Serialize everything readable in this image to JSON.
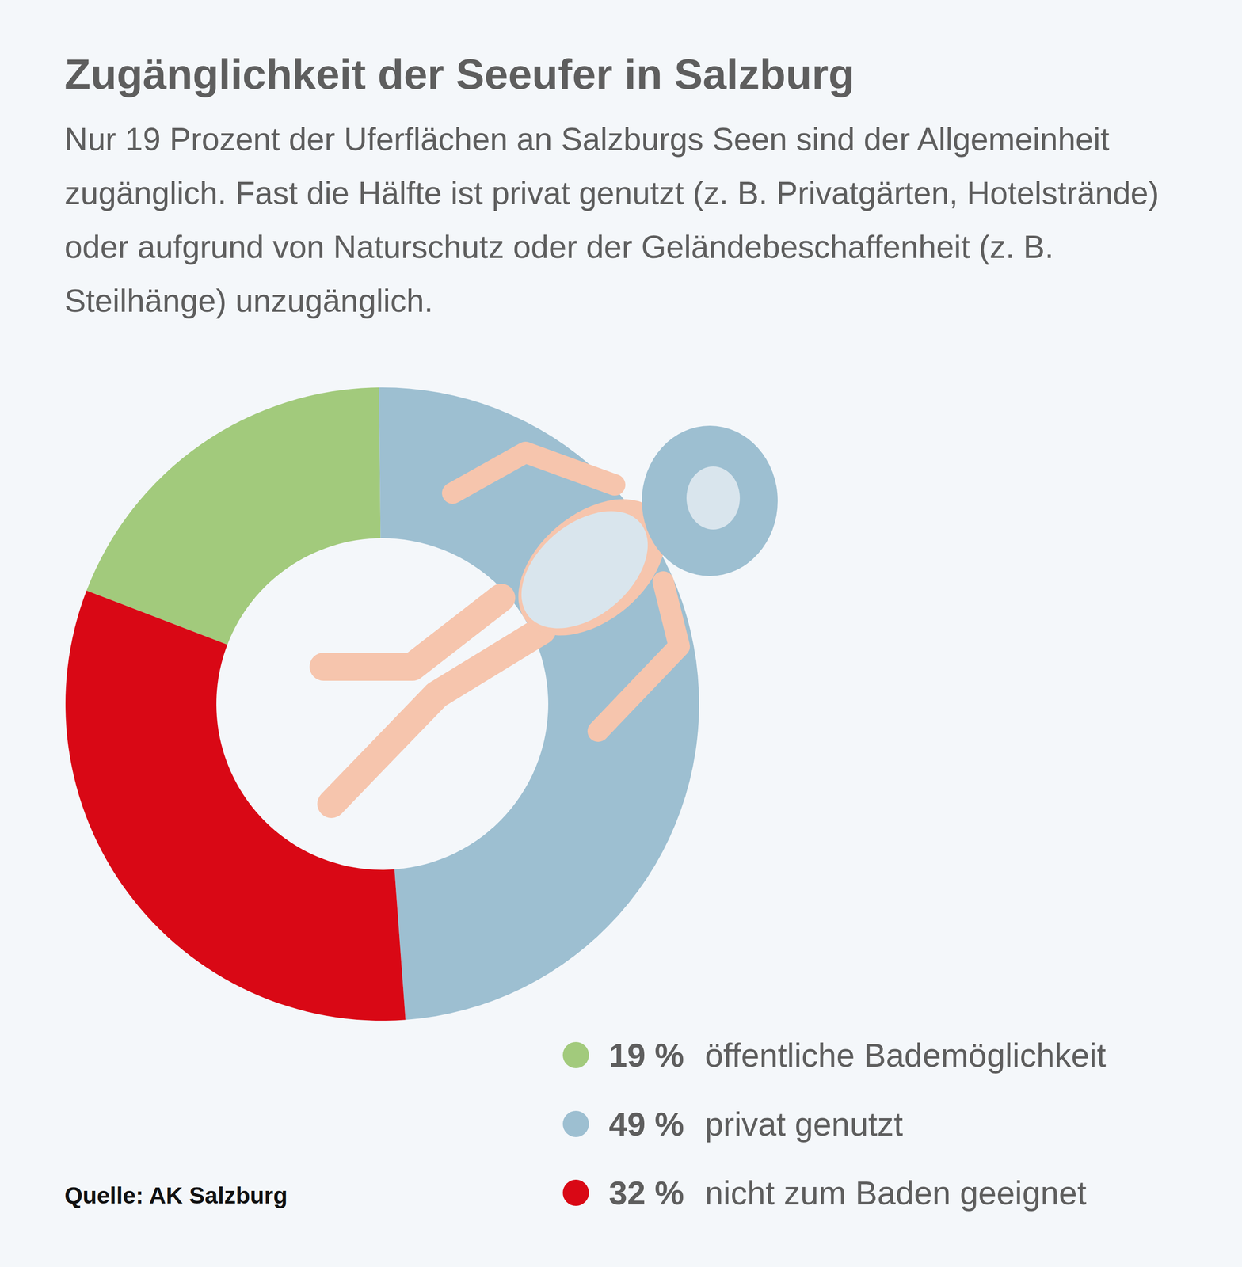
{
  "chart_data": {
    "type": "donut",
    "title": "Zugänglichkeit der Seeufer in Salzburg",
    "subtitle": "Nur 19 Prozent der Uferflächen an Salzburgs Seen sind der Allgemeinheit zugänglich. Fast die Hälfte ist privat genutzt (z. B. Privatgärten, Hotelstrände) oder aufgrund von Naturschutz oder der Geländebeschaffenheit (z. B. Steilhänge) unzugänglich.",
    "categories": [
      "öffentliche Bademöglichkeit",
      "privat genutzt",
      "nicht zum Baden geeignet"
    ],
    "values": [
      19,
      49,
      32
    ],
    "value_labels": [
      "19 %",
      "49 %",
      "32 %"
    ],
    "colors": [
      "#a2ca7c",
      "#9dbfd1",
      "#d90815"
    ],
    "legend": "bottom",
    "source": "Quelle: AK Salzburg"
  }
}
